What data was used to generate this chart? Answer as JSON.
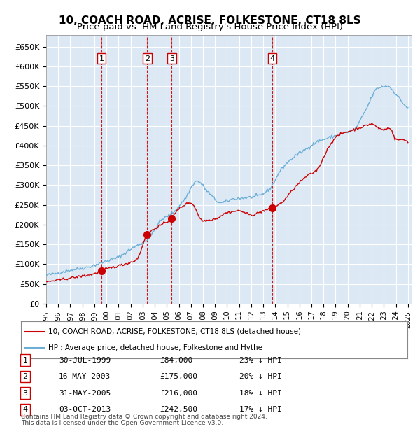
{
  "title": "10, COACH ROAD, ACRISE, FOLKESTONE, CT18 8LS",
  "subtitle": "Price paid vs. HM Land Registry's House Price Index (HPI)",
  "title_fontsize": 11,
  "subtitle_fontsize": 9.5,
  "background_color": "#dce9f5",
  "plot_bg_color": "#dce9f5",
  "ylim": [
    0,
    680000
  ],
  "yticks": [
    0,
    50000,
    100000,
    150000,
    200000,
    250000,
    300000,
    350000,
    400000,
    450000,
    500000,
    550000,
    600000,
    650000
  ],
  "ytick_labels": [
    "£0",
    "£50K",
    "£100K",
    "£150K",
    "£200K",
    "£250K",
    "£300K",
    "£350K",
    "£400K",
    "£450K",
    "£500K",
    "£550K",
    "£600K",
    "£650K"
  ],
  "hpi_color": "#6baed6",
  "price_color": "#cc0000",
  "sale_marker_color": "#cc0000",
  "vline_color": "#cc0000",
  "legend_box_color": "white",
  "sales": [
    {
      "date_num": 1999.58,
      "price": 84000,
      "label": "1",
      "date_str": "30-JUL-1999",
      "pct": "23%"
    },
    {
      "date_num": 2003.37,
      "price": 175000,
      "label": "2",
      "date_str": "16-MAY-2003",
      "pct": "20%"
    },
    {
      "date_num": 2005.41,
      "price": 216000,
      "label": "3",
      "date_str": "31-MAY-2005",
      "pct": "18%"
    },
    {
      "date_num": 2013.75,
      "price": 242500,
      "label": "4",
      "date_str": "03-OCT-2013",
      "pct": "17%"
    }
  ],
  "footer_line1": "Contains HM Land Registry data © Crown copyright and database right 2024.",
  "footer_line2": "This data is licensed under the Open Government Licence v3.0.",
  "legend_label1": "10, COACH ROAD, ACRISE, FOLKESTONE, CT18 8LS (detached house)",
  "legend_label2": "HPI: Average price, detached house, Folkestone and Hythe"
}
